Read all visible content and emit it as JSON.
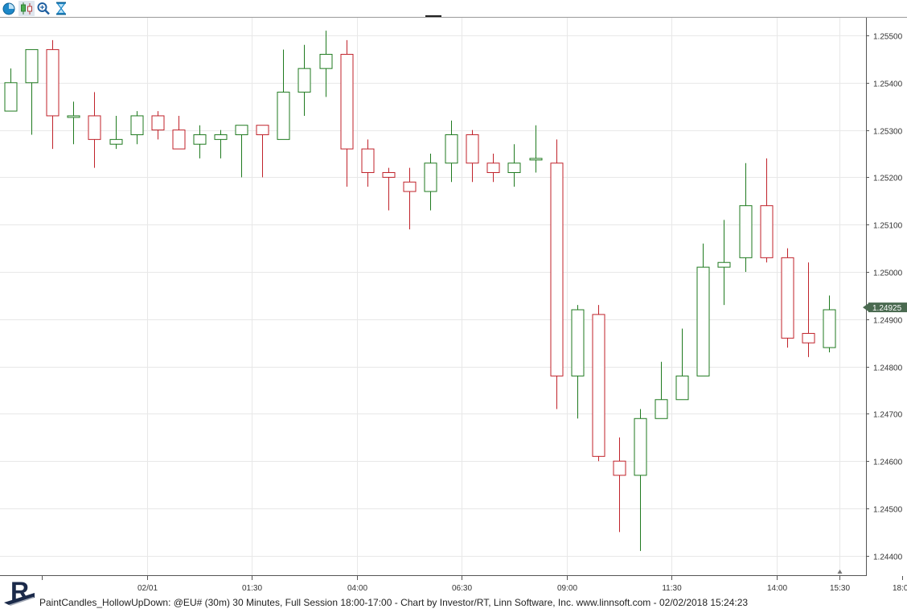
{
  "toolbar": {
    "buttons": [
      {
        "name": "clock-icon",
        "color": "#1e88c8"
      },
      {
        "name": "candlestick-icon",
        "color": "#2e7d32"
      },
      {
        "name": "zoom-icon",
        "color": "#1e5fa0"
      },
      {
        "name": "hourglass-icon",
        "color": "#1e88c8"
      }
    ]
  },
  "footer": {
    "caption": "PaintCandles_HollowUpDown: @EU# (30m) 30 Minutes, Full Session 18:00-17:00 - Chart by Investor/RT, Linn Software, Inc. www.linnsoft.com - 02/02/2018 15:24:23",
    "logo_letter": "R"
  },
  "chart_data": {
    "type": "candlestick",
    "symbol": "@EU#",
    "interval": "30 Minutes",
    "y_range": [
      1.2437,
      1.2555
    ],
    "y_ticks": [
      "1.25500",
      "1.25400",
      "1.25300",
      "1.25200",
      "1.25100",
      "1.25000",
      "1.24900",
      "1.24800",
      "1.24700",
      "1.24600",
      "1.24500",
      "1.24400"
    ],
    "x_ticks": [
      {
        "label": "02/01",
        "bar": 6.5
      },
      {
        "label": "01:30",
        "bar": 11.5
      },
      {
        "label": "04:00",
        "bar": 16.5
      },
      {
        "label": "06:30",
        "bar": 21.5
      },
      {
        "label": "09:00",
        "bar": 26.5
      },
      {
        "label": "11:30",
        "bar": 31.5
      },
      {
        "label": "14:00",
        "bar": 36.5
      },
      {
        "label": "15:30",
        "bar": 39.5
      },
      {
        "label": "18:00",
        "bar": 42.5
      }
    ],
    "last_price": "1.24925",
    "colors": {
      "up": "#1f7a1f",
      "down": "#c0222a",
      "grid": "#e8e8e8",
      "axis": "#555555",
      "last_price_bg": "#4a6a50"
    },
    "candles": [
      {
        "o": 1.2534,
        "h": 1.2543,
        "l": 1.2534,
        "c": 1.254
      },
      {
        "o": 1.254,
        "h": 1.2547,
        "l": 1.2529,
        "c": 1.2547
      },
      {
        "o": 1.2547,
        "h": 1.2549,
        "l": 1.2526,
        "c": 1.2533
      },
      {
        "o": 1.2533,
        "h": 1.2536,
        "l": 1.2527,
        "c": 1.2533
      },
      {
        "o": 1.2533,
        "h": 1.2538,
        "l": 1.2522,
        "c": 1.2528
      },
      {
        "o": 1.2527,
        "h": 1.2533,
        "l": 1.2526,
        "c": 1.2528
      },
      {
        "o": 1.2529,
        "h": 1.2534,
        "l": 1.2527,
        "c": 1.2533
      },
      {
        "o": 1.2533,
        "h": 1.2534,
        "l": 1.2528,
        "c": 1.253
      },
      {
        "o": 1.253,
        "h": 1.2533,
        "l": 1.2526,
        "c": 1.2526
      },
      {
        "o": 1.2527,
        "h": 1.2531,
        "l": 1.2524,
        "c": 1.2529
      },
      {
        "o": 1.2528,
        "h": 1.253,
        "l": 1.2524,
        "c": 1.2529
      },
      {
        "o": 1.2529,
        "h": 1.2531,
        "l": 1.252,
        "c": 1.2531
      },
      {
        "o": 1.2531,
        "h": 1.2531,
        "l": 1.252,
        "c": 1.2529
      },
      {
        "o": 1.2528,
        "h": 1.2547,
        "l": 1.2528,
        "c": 1.2538
      },
      {
        "o": 1.2538,
        "h": 1.2548,
        "l": 1.2533,
        "c": 1.2543
      },
      {
        "o": 1.2543,
        "h": 1.2551,
        "l": 1.2537,
        "c": 1.2546
      },
      {
        "o": 1.2546,
        "h": 1.2549,
        "l": 1.2518,
        "c": 1.2526
      },
      {
        "o": 1.2526,
        "h": 1.2528,
        "l": 1.2518,
        "c": 1.2521
      },
      {
        "o": 1.2521,
        "h": 1.2522,
        "l": 1.2513,
        "c": 1.252
      },
      {
        "o": 1.2519,
        "h": 1.2522,
        "l": 1.2509,
        "c": 1.2517
      },
      {
        "o": 1.2517,
        "h": 1.2525,
        "l": 1.2513,
        "c": 1.2523
      },
      {
        "o": 1.2523,
        "h": 1.2532,
        "l": 1.2519,
        "c": 1.2529
      },
      {
        "o": 1.2529,
        "h": 1.253,
        "l": 1.2519,
        "c": 1.2523
      },
      {
        "o": 1.2523,
        "h": 1.2525,
        "l": 1.2519,
        "c": 1.2521
      },
      {
        "o": 1.2521,
        "h": 1.2527,
        "l": 1.2518,
        "c": 1.2523
      },
      {
        "o": 1.2524,
        "h": 1.2531,
        "l": 1.2521,
        "c": 1.2524
      },
      {
        "o": 1.2523,
        "h": 1.2528,
        "l": 1.2471,
        "c": 1.2478
      },
      {
        "o": 1.2478,
        "h": 1.2493,
        "l": 1.2469,
        "c": 1.2492
      },
      {
        "o": 1.2491,
        "h": 1.2493,
        "l": 1.246,
        "c": 1.2461
      },
      {
        "o": 1.246,
        "h": 1.2465,
        "l": 1.2445,
        "c": 1.2457
      },
      {
        "o": 1.2457,
        "h": 1.2471,
        "l": 1.2441,
        "c": 1.2469
      },
      {
        "o": 1.2469,
        "h": 1.2481,
        "l": 1.2469,
        "c": 1.2473
      },
      {
        "o": 1.2473,
        "h": 1.2488,
        "l": 1.2473,
        "c": 1.2478
      },
      {
        "o": 1.2478,
        "h": 1.2506,
        "l": 1.2478,
        "c": 1.2501
      },
      {
        "o": 1.2501,
        "h": 1.2511,
        "l": 1.2493,
        "c": 1.2502
      },
      {
        "o": 1.2503,
        "h": 1.2523,
        "l": 1.25,
        "c": 1.2514
      },
      {
        "o": 1.2514,
        "h": 1.2524,
        "l": 1.2502,
        "c": 1.2503
      },
      {
        "o": 1.2503,
        "h": 1.2505,
        "l": 1.2484,
        "c": 1.2486
      },
      {
        "o": 1.2487,
        "h": 1.2502,
        "l": 1.2482,
        "c": 1.2485
      },
      {
        "o": 1.2484,
        "h": 1.2495,
        "l": 1.2483,
        "c": 1.2492
      }
    ]
  }
}
